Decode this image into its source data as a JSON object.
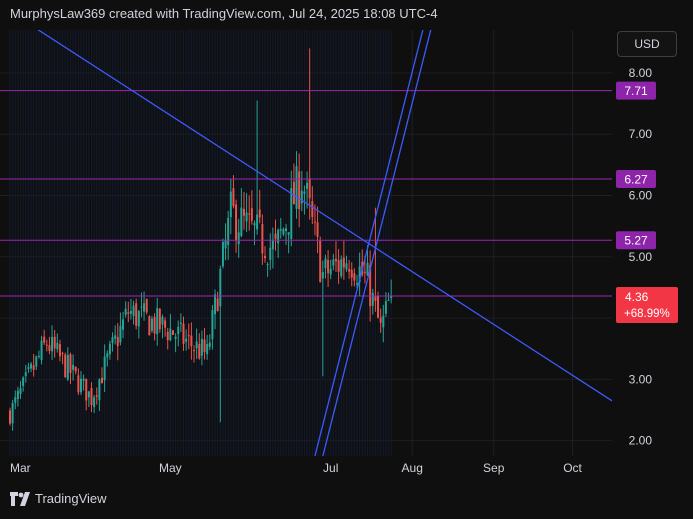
{
  "header": {
    "title": "MurphysLaw369 created with TradingView.com, Jul 24, 2025 18:08 UTC-4"
  },
  "toolbar": {
    "currency_label": "USD"
  },
  "branding": {
    "name": "TradingView"
  },
  "colors": {
    "background": "#0f0f0f",
    "up": "#26a69a",
    "down": "#ef5350",
    "level_line": "#9c27b0",
    "level_badge": "#8e24aa",
    "trend_line": "#3d5afe",
    "price_badge": "#f23645",
    "axis_text": "#d1d4dc"
  },
  "chart_data": {
    "type": "candlestick",
    "title": "",
    "xlabel": "",
    "ylabel": "",
    "ylim": [
      1.75,
      8.7
    ],
    "y_ticks": [
      "2.00",
      "3.00",
      "4.00",
      "5.00",
      "6.00",
      "7.00",
      "8.00"
    ],
    "x_ticks": [
      "Mar",
      "May",
      "Jul",
      "Aug",
      "Sep",
      "Oct"
    ],
    "x_range": [
      "2025-03-01",
      "2025-10-16"
    ],
    "x_tick_dates": [
      "2025-03-01",
      "2025-05-01",
      "2025-07-01",
      "2025-08-01",
      "2025-09-01",
      "2025-10-01"
    ],
    "horizontal_levels": [
      {
        "label": "7.71",
        "value": 7.71
      },
      {
        "label": "6.27",
        "value": 6.27
      },
      {
        "label": "5.27",
        "value": 5.27
      }
    ],
    "last_price": {
      "label": "4.36",
      "change": "+68.99%",
      "value": 4.36
    },
    "price_line_value": 4.36,
    "trend_lines": [
      {
        "name": "descending",
        "points": [
          [
            "2025-03-01",
            9.0
          ],
          [
            "2025-10-16",
            2.65
          ]
        ]
      },
      {
        "name": "channel-lower",
        "points": [
          [
            "2025-06-28",
            1.75
          ],
          [
            "2025-08-11",
            9.2
          ]
        ]
      },
      {
        "name": "channel-upper",
        "points": [
          [
            "2025-06-25",
            1.75
          ],
          [
            "2025-08-08",
            9.2
          ]
        ]
      }
    ],
    "anchor_candles": [
      {
        "date": "2025-03-01",
        "close": 2.45
      },
      {
        "date": "2025-03-15",
        "close": 3.6
      },
      {
        "date": "2025-04-01",
        "close": 2.7
      },
      {
        "date": "2025-04-15",
        "close": 4.1
      },
      {
        "date": "2025-05-01",
        "close": 3.8
      },
      {
        "date": "2025-05-15",
        "close": 3.4
      },
      {
        "date": "2025-05-24",
        "close": 5.7
      },
      {
        "date": "2025-06-10",
        "close": 5.1
      },
      {
        "date": "2025-06-20",
        "close": 6.3
      },
      {
        "date": "2025-06-28",
        "close": 4.7
      },
      {
        "date": "2025-07-08",
        "close": 5.0
      },
      {
        "date": "2025-07-15",
        "close": 4.6
      },
      {
        "date": "2025-07-20",
        "close": 3.8
      },
      {
        "date": "2025-07-24",
        "close": 4.36
      }
    ]
  }
}
